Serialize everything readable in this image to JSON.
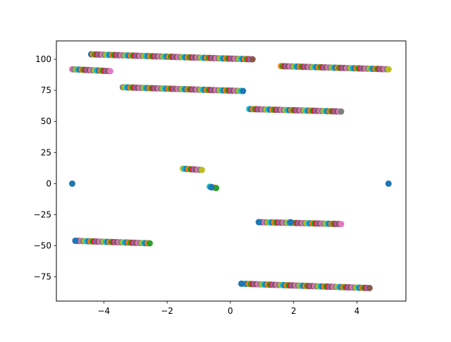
{
  "chart_data": {
    "type": "scatter",
    "title": "",
    "xlabel": "",
    "ylabel": "",
    "xlim": [
      -5.5,
      5.55
    ],
    "ylim": [
      -94.5,
      114.8
    ],
    "xticks": [
      -4,
      -2,
      0,
      2,
      4
    ],
    "xtick_labels": [
      "−4",
      "−2",
      "0",
      "2",
      "4"
    ],
    "yticks": [
      -75,
      -50,
      -25,
      0,
      25,
      50,
      75,
      100
    ],
    "ytick_labels": [
      "−75",
      "−50",
      "−25",
      "0",
      "25",
      "50",
      "75",
      "100"
    ],
    "grid": false,
    "legend": "none",
    "colors": [
      "#1f77b4",
      "#ff7f0e",
      "#2ca02c",
      "#d62728",
      "#9467bd",
      "#8c564b",
      "#e377c2",
      "#7f7f7f",
      "#bcbd22",
      "#17becf"
    ],
    "segments": [
      {
        "x_start": -4.4,
        "x_end": 0.7,
        "y_start": 104,
        "y_end": 100
      },
      {
        "x_start": -5.0,
        "x_end": -3.8,
        "y_start": 92,
        "y_end": 90.5
      },
      {
        "x_start": -3.4,
        "x_end": 0.4,
        "y_start": 77.5,
        "y_end": 74.5
      },
      {
        "x_start": 1.6,
        "x_end": 5.0,
        "y_start": 94.5,
        "y_end": 92
      },
      {
        "x_start": 0.6,
        "x_end": 3.5,
        "y_start": 60,
        "y_end": 58
      },
      {
        "x_start": -1.5,
        "x_end": -0.9,
        "y_start": 12,
        "y_end": 11
      },
      {
        "x_start": -0.65,
        "x_end": -0.45,
        "y_start": -2.5,
        "y_end": -3.5
      },
      {
        "x_start": -4.9,
        "x_end": -2.55,
        "y_start": -46,
        "y_end": -48
      },
      {
        "x_start": 0.9,
        "x_end": 3.5,
        "y_start": -31,
        "y_end": -32.5
      },
      {
        "x_start": 0.35,
        "x_end": 4.4,
        "y_start": -80.5,
        "y_end": -84
      }
    ],
    "single_points": [
      {
        "x": -5.0,
        "y": 0
      },
      {
        "x": 5.0,
        "y": 0
      },
      {
        "x": 0.9,
        "y": -31
      },
      {
        "x": 1.9,
        "y": -31
      },
      {
        "x": 0.35,
        "y": -80.5
      },
      {
        "x": -4.9,
        "y": -46
      },
      {
        "x": -0.6,
        "y": -3
      }
    ]
  }
}
